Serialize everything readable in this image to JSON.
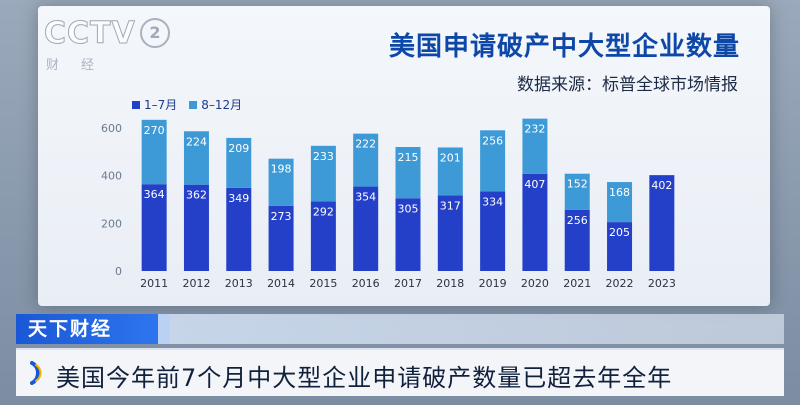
{
  "logo": {
    "brand": "CCTV",
    "channel": "2",
    "sub": "财经"
  },
  "chart_title": "美国申请破产中大型企业数量",
  "chart_source": "数据来源：标普全球市场情报",
  "news": {
    "program": "天下财经",
    "headline": "美国今年前7个月中大型企业申请破产数量已超去年全年"
  },
  "colors": {
    "series_1_7": "#2440c8",
    "series_8_12": "#3d9ad6",
    "title": "#0d47a8",
    "news_tag": "#1a57d6"
  },
  "chart_data": {
    "type": "bar",
    "stacked": true,
    "categories": [
      "2011",
      "2012",
      "2013",
      "2014",
      "2015",
      "2016",
      "2017",
      "2018",
      "2019",
      "2020",
      "2021",
      "2022",
      "2023"
    ],
    "series": [
      {
        "name": "1–7月",
        "values": [
          364,
          362,
          349,
          273,
          292,
          354,
          305,
          317,
          334,
          407,
          256,
          205,
          402
        ]
      },
      {
        "name": "8–12月",
        "values": [
          270,
          224,
          209,
          198,
          233,
          222,
          215,
          201,
          256,
          232,
          152,
          168,
          null
        ]
      }
    ],
    "yticks": [
      0,
      200,
      400,
      600
    ],
    "ylim": [
      0,
      650
    ],
    "grid": false,
    "legend": "top-left"
  }
}
